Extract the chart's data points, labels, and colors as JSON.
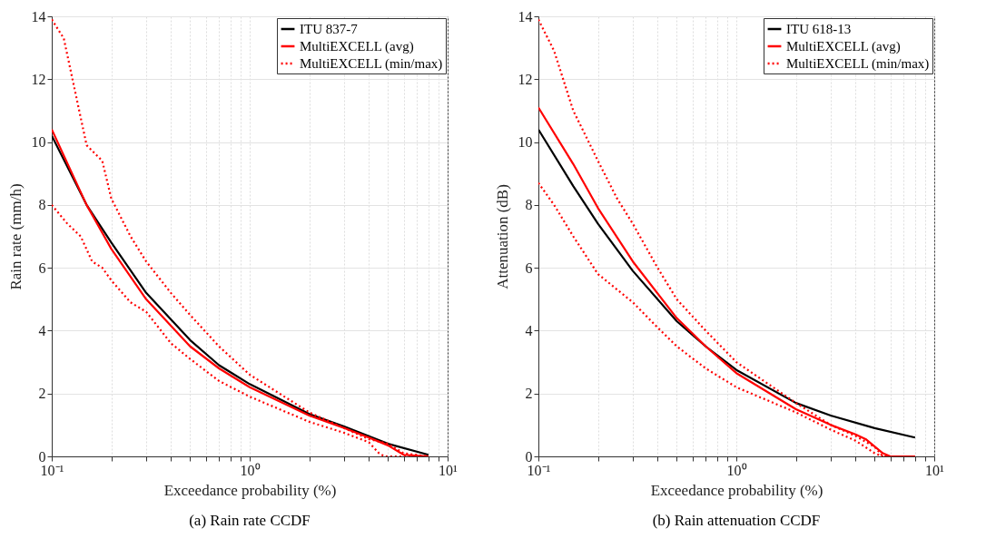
{
  "chart_data": [
    {
      "type": "line",
      "title": "(a) Rain rate CCDF",
      "xlabel": "Exceedance probability (%)",
      "ylabel": "Rain rate (mm/h)",
      "log": "x",
      "grid": true,
      "legend": "top right",
      "xlim": [
        0.1,
        10
      ],
      "ylim": [
        0,
        14
      ],
      "xticks": [
        {
          "value": 0.1,
          "label": "10⁻¹"
        },
        {
          "value": 0.2,
          "label": null
        },
        {
          "value": 0.3,
          "label": null
        },
        {
          "value": 0.4,
          "label": null
        },
        {
          "value": 0.5,
          "label": null
        },
        {
          "value": 0.6,
          "label": null
        },
        {
          "value": 0.7,
          "label": null
        },
        {
          "value": 0.8,
          "label": null
        },
        {
          "value": 0.9,
          "label": null
        },
        {
          "value": 1,
          "label": "10⁰"
        },
        {
          "value": 2,
          "label": null
        },
        {
          "value": 3,
          "label": null
        },
        {
          "value": 4,
          "label": null
        },
        {
          "value": 5,
          "label": null
        },
        {
          "value": 6,
          "label": null
        },
        {
          "value": 7,
          "label": null
        },
        {
          "value": 8,
          "label": null
        },
        {
          "value": 9,
          "label": null
        },
        {
          "value": 10,
          "label": "10¹"
        }
      ],
      "yticks": [
        0,
        2,
        4,
        6,
        8,
        10,
        12,
        14
      ],
      "series": [
        {
          "name": "ITU 837-7",
          "color": "#000000",
          "line_style": "solid",
          "x": [
            0.1,
            0.15,
            0.2,
            0.3,
            0.5,
            0.7,
            1,
            2,
            3,
            5,
            8
          ],
          "values": [
            10.2,
            8.0,
            6.8,
            5.2,
            3.7,
            2.9,
            2.3,
            1.35,
            0.95,
            0.4,
            0.05
          ]
        },
        {
          "name": "MultiEXCELL (avg)",
          "color": "#ff0000",
          "line_style": "solid",
          "x": [
            0.1,
            0.15,
            0.2,
            0.3,
            0.5,
            0.7,
            1,
            2,
            3,
            4,
            5,
            6,
            8
          ],
          "values": [
            10.4,
            8.0,
            6.6,
            5.0,
            3.5,
            2.8,
            2.2,
            1.3,
            0.9,
            0.6,
            0.35,
            0.05,
            0
          ]
        },
        {
          "name": "MultiEXCELL (min/max)",
          "color": "#ff0000",
          "line_style": "dotted",
          "x": [
            0.1,
            0.115,
            0.15,
            0.18,
            0.2,
            0.25,
            0.3,
            0.4,
            0.5,
            0.7,
            1,
            2,
            3,
            4,
            5,
            6,
            8
          ],
          "values": [
            13.9,
            13.3,
            9.9,
            9.4,
            8.2,
            7.0,
            6.2,
            5.2,
            4.5,
            3.5,
            2.6,
            1.4,
            0.9,
            0.55,
            0.4,
            0.1,
            0
          ]
        },
        {
          "color": "#ff0000",
          "line_style": "dotted",
          "x": [
            0.1,
            0.12,
            0.14,
            0.16,
            0.18,
            0.2,
            0.25,
            0.3,
            0.4,
            0.5,
            0.7,
            1,
            2,
            3,
            4,
            4.5,
            4.8,
            8
          ],
          "values": [
            8.0,
            7.4,
            7.0,
            6.2,
            6.0,
            5.6,
            4.9,
            4.6,
            3.6,
            3.1,
            2.4,
            1.9,
            1.1,
            0.75,
            0.45,
            0.1,
            0,
            0
          ]
        }
      ]
    },
    {
      "type": "line",
      "title": "(b) Rain attenuation CCDF",
      "xlabel": "Exceedance probability (%)",
      "ylabel": "Attenuation (dB)",
      "log": "x",
      "grid": true,
      "legend": "top right",
      "xlim": [
        0.1,
        10
      ],
      "ylim": [
        0,
        14
      ],
      "xticks": [
        {
          "value": 0.1,
          "label": "10⁻¹"
        },
        {
          "value": 0.2,
          "label": null
        },
        {
          "value": 0.3,
          "label": null
        },
        {
          "value": 0.4,
          "label": null
        },
        {
          "value": 0.5,
          "label": null
        },
        {
          "value": 0.6,
          "label": null
        },
        {
          "value": 0.7,
          "label": null
        },
        {
          "value": 0.8,
          "label": null
        },
        {
          "value": 0.9,
          "label": null
        },
        {
          "value": 1,
          "label": "10⁰"
        },
        {
          "value": 2,
          "label": null
        },
        {
          "value": 3,
          "label": null
        },
        {
          "value": 4,
          "label": null
        },
        {
          "value": 5,
          "label": null
        },
        {
          "value": 6,
          "label": null
        },
        {
          "value": 7,
          "label": null
        },
        {
          "value": 8,
          "label": null
        },
        {
          "value": 9,
          "label": null
        },
        {
          "value": 10,
          "label": "10¹"
        }
      ],
      "yticks": [
        0,
        2,
        4,
        6,
        8,
        10,
        12,
        14
      ],
      "series": [
        {
          "name": "ITU 618-13",
          "color": "#000000",
          "line_style": "solid",
          "x": [
            0.1,
            0.15,
            0.2,
            0.3,
            0.5,
            0.7,
            1,
            2,
            3,
            5,
            8
          ],
          "values": [
            10.4,
            8.6,
            7.4,
            5.9,
            4.3,
            3.5,
            2.75,
            1.7,
            1.3,
            0.9,
            0.6
          ]
        },
        {
          "name": "MultiEXCELL (avg)",
          "color": "#ff0000",
          "line_style": "solid",
          "x": [
            0.1,
            0.15,
            0.2,
            0.3,
            0.5,
            0.7,
            1,
            2,
            3,
            4,
            4.5,
            5.5,
            6,
            8
          ],
          "values": [
            11.1,
            9.3,
            7.9,
            6.2,
            4.4,
            3.5,
            2.65,
            1.5,
            1.0,
            0.7,
            0.55,
            0.1,
            0,
            0
          ]
        },
        {
          "name": "MultiEXCELL (min/max)",
          "color": "#ff0000",
          "line_style": "dotted",
          "x": [
            0.1,
            0.12,
            0.15,
            0.2,
            0.25,
            0.3,
            0.4,
            0.5,
            0.7,
            1,
            2,
            3,
            4,
            5,
            5.5,
            8
          ],
          "values": [
            13.9,
            12.9,
            11.0,
            9.4,
            8.2,
            7.4,
            6.0,
            5.0,
            4.0,
            3.0,
            1.7,
            1.0,
            0.65,
            0.3,
            0,
            0
          ]
        },
        {
          "color": "#ff0000",
          "line_style": "dotted",
          "x": [
            0.1,
            0.12,
            0.15,
            0.2,
            0.3,
            0.4,
            0.5,
            0.7,
            1,
            2,
            3,
            4,
            5,
            5.5,
            8
          ],
          "values": [
            8.7,
            8.0,
            7.0,
            5.8,
            4.9,
            4.1,
            3.5,
            2.8,
            2.2,
            1.4,
            0.85,
            0.5,
            0.1,
            0,
            0
          ]
        }
      ]
    }
  ]
}
